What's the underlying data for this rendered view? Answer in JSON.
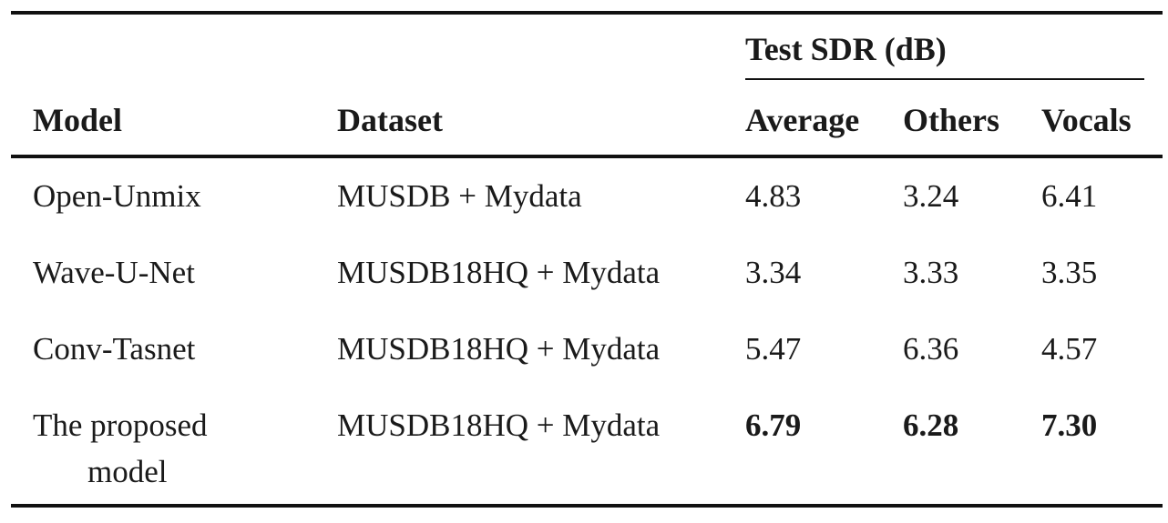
{
  "table": {
    "group_header": "Test SDR (dB)",
    "headers": {
      "model": "Model",
      "dataset": "Dataset",
      "average": "Average",
      "others": "Others",
      "vocals": "Vocals"
    },
    "rows": [
      {
        "model": "Open-Unmix",
        "dataset": "MUSDB + Mydata",
        "average": "4.83",
        "others": "3.24",
        "vocals": "6.41"
      },
      {
        "model": "Wave-U-Net",
        "dataset": "MUSDB18HQ + Mydata",
        "average": "3.34",
        "others": "3.33",
        "vocals": "3.35"
      },
      {
        "model": "Conv-Tasnet",
        "dataset": "MUSDB18HQ + Mydata",
        "average": "5.47",
        "others": "6.36",
        "vocals": "4.57"
      },
      {
        "model_line1": "The proposed",
        "model_line2": "model",
        "dataset": "MUSDB18HQ + Mydata",
        "average": "6.79",
        "others": "6.28",
        "vocals": "7.30"
      }
    ]
  }
}
